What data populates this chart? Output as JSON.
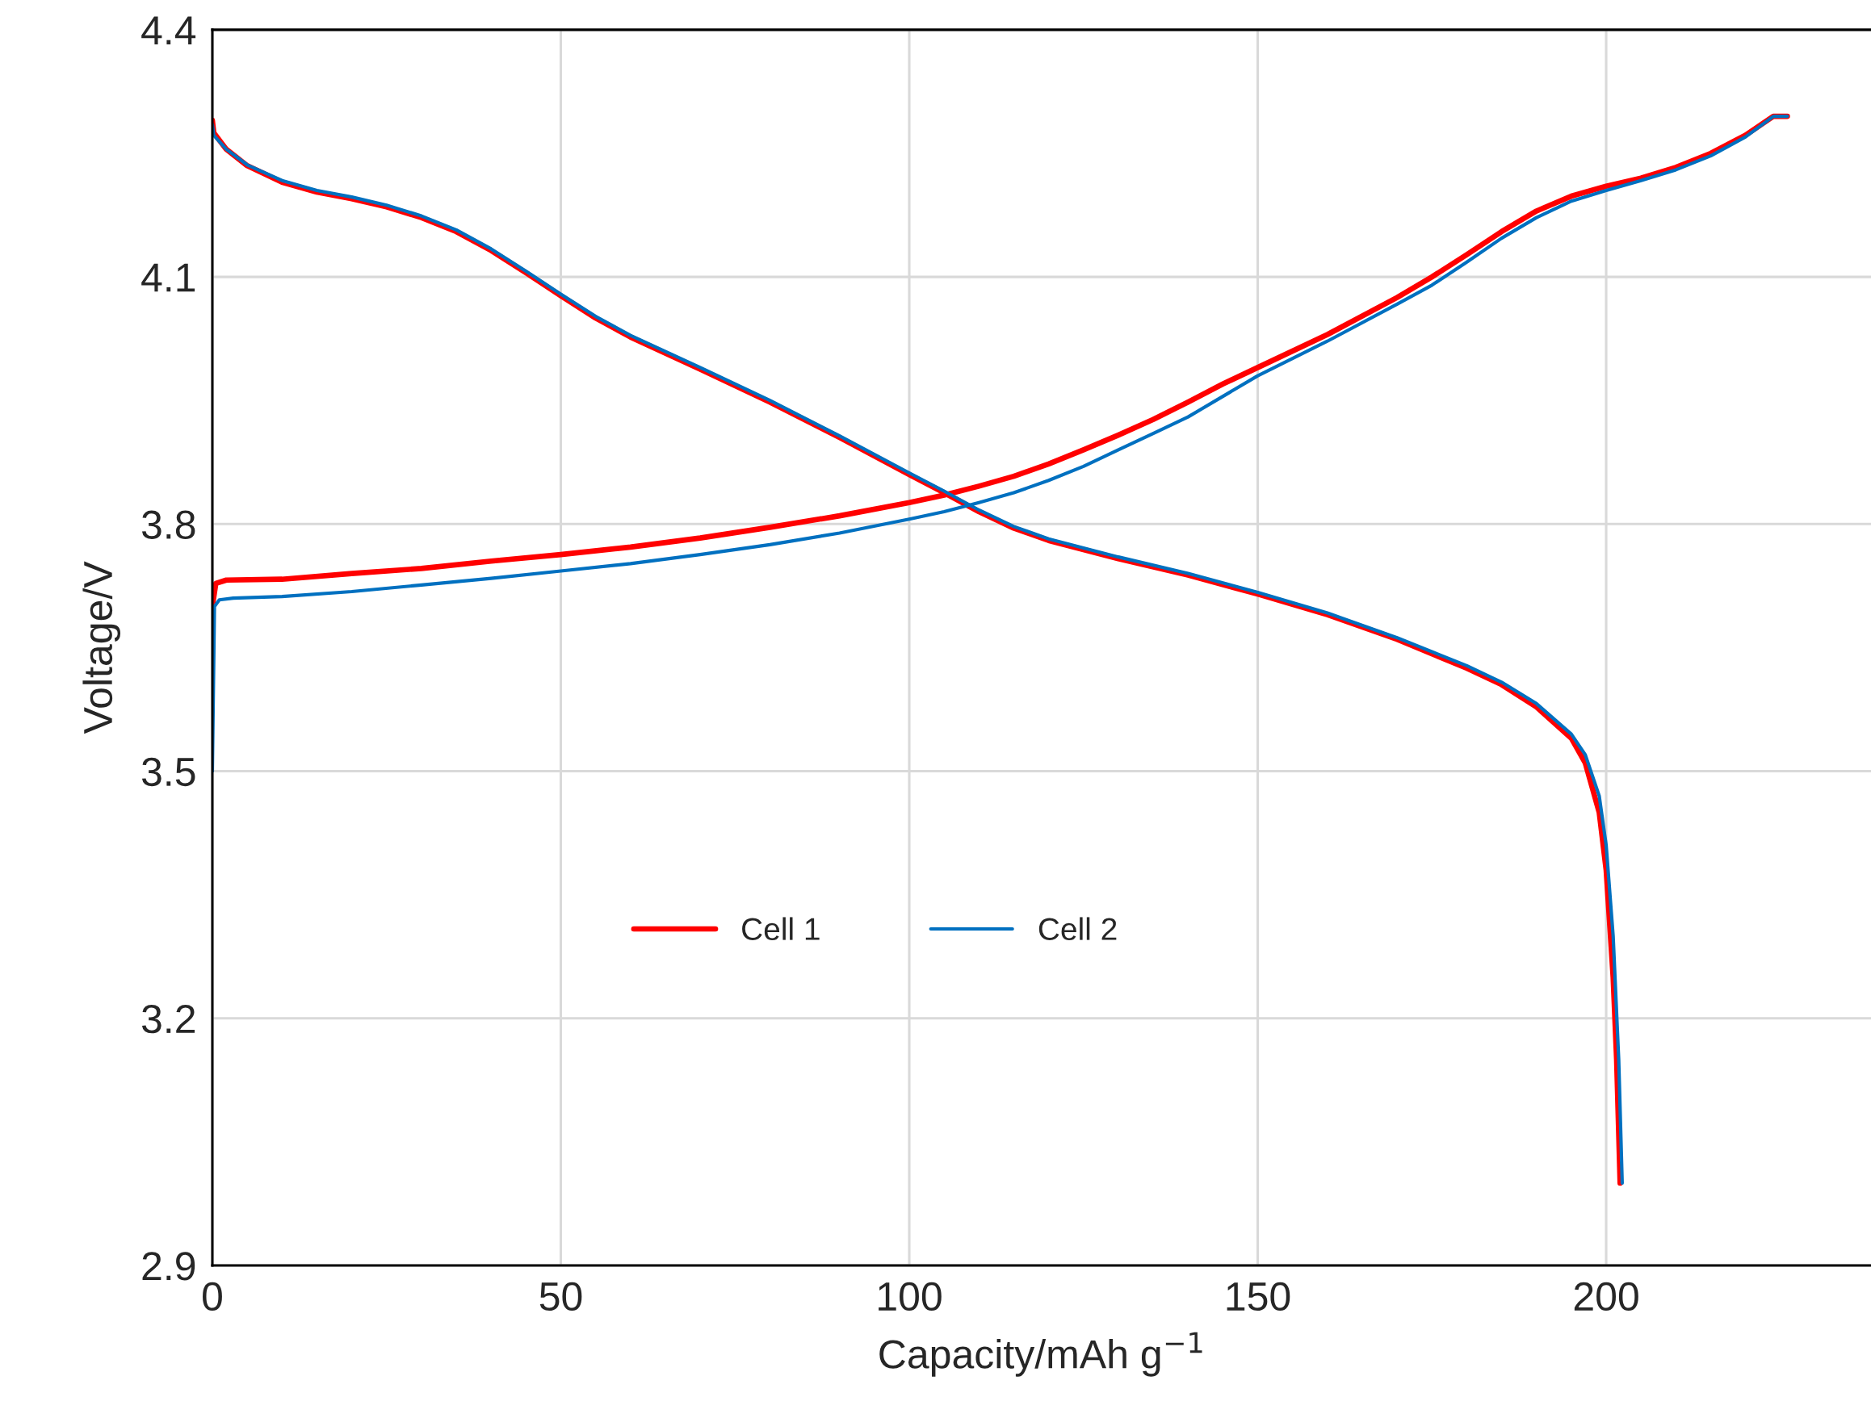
{
  "chart_data": {
    "type": "line",
    "xlabel": "Capacity/mAh g$^{−1}$",
    "ylabel": "Voltage/V",
    "xlim": [
      0,
      238
    ],
    "xticks": [
      0,
      50,
      100,
      150,
      200
    ],
    "ylim": [
      2.9,
      4.4
    ],
    "yticks": [
      2.9,
      3.2,
      3.5,
      3.8,
      4.1,
      4.4
    ],
    "grid": true,
    "legend": "center",
    "marker": "none",
    "line_style": "solid",
    "series": [
      {
        "name": "Cell 1",
        "color": "#ff0000",
        "x": [
          0,
          0.5,
          2,
          10,
          20,
          30,
          40,
          50,
          60,
          70,
          80,
          90,
          100,
          105,
          110,
          115,
          120,
          125,
          130,
          135,
          140,
          145,
          150,
          160,
          170,
          175,
          180,
          185,
          190,
          195,
          200,
          205,
          210,
          215,
          220,
          224,
          226
        ],
        "values": [
          3.7,
          3.728,
          3.732,
          3.733,
          3.74,
          3.746,
          3.755,
          3.763,
          3.772,
          3.783,
          3.796,
          3.81,
          3.826,
          3.835,
          3.846,
          3.858,
          3.873,
          3.89,
          3.908,
          3.927,
          3.948,
          3.97,
          3.99,
          4.03,
          4.075,
          4.1,
          4.127,
          4.155,
          4.18,
          4.198,
          4.21,
          4.22,
          4.233,
          4.25,
          4.272,
          4.295,
          4.295
        ]
      },
      {
        "color": "#ff0000",
        "x": [
          0,
          0.2,
          2,
          5,
          10,
          15,
          20,
          25,
          30,
          35,
          40,
          45,
          50,
          55,
          60,
          70,
          80,
          90,
          100,
          105,
          110,
          115,
          120,
          130,
          140,
          150,
          160,
          170,
          180,
          185,
          190,
          195,
          197,
          199,
          200,
          201,
          201.5,
          202
        ],
        "values": [
          4.29,
          4.275,
          4.255,
          4.235,
          4.215,
          4.203,
          4.195,
          4.185,
          4.172,
          4.155,
          4.132,
          4.105,
          4.077,
          4.05,
          4.027,
          3.988,
          3.948,
          3.905,
          3.86,
          3.838,
          3.815,
          3.795,
          3.78,
          3.758,
          3.738,
          3.715,
          3.69,
          3.66,
          3.625,
          3.605,
          3.578,
          3.54,
          3.51,
          3.45,
          3.38,
          3.25,
          3.15,
          3.0
        ]
      },
      {
        "name": "Cell 2",
        "color": "#0070c0",
        "x": [
          0,
          0.3,
          1,
          3,
          10,
          20,
          30,
          40,
          50,
          60,
          70,
          80,
          90,
          100,
          105,
          110,
          115,
          120,
          125,
          130,
          135,
          140,
          145,
          150,
          160,
          170,
          175,
          180,
          185,
          190,
          195,
          200,
          205,
          210,
          215,
          220,
          224,
          226
        ],
        "values": [
          3.5,
          3.7,
          3.708,
          3.71,
          3.712,
          3.718,
          3.726,
          3.734,
          3.743,
          3.752,
          3.763,
          3.775,
          3.789,
          3.806,
          3.815,
          3.826,
          3.838,
          3.853,
          3.87,
          3.89,
          3.91,
          3.93,
          3.955,
          3.98,
          4.022,
          4.067,
          4.09,
          4.118,
          4.147,
          4.172,
          4.192,
          4.205,
          4.217,
          4.23,
          4.247,
          4.27,
          4.295,
          4.295
        ]
      },
      {
        "color": "#0070c0",
        "x": [
          0,
          0.2,
          2,
          5,
          10,
          15,
          20,
          25,
          30,
          35,
          40,
          45,
          50,
          55,
          60,
          70,
          80,
          90,
          100,
          105,
          110,
          115,
          120,
          130,
          140,
          150,
          160,
          170,
          180,
          185,
          190,
          195,
          197,
          199,
          200,
          201,
          201.8,
          202.3
        ],
        "values": [
          4.285,
          4.272,
          4.255,
          4.236,
          4.217,
          4.205,
          4.197,
          4.187,
          4.174,
          4.157,
          4.134,
          4.107,
          4.079,
          4.052,
          4.029,
          3.99,
          3.95,
          3.907,
          3.862,
          3.84,
          3.817,
          3.797,
          3.782,
          3.76,
          3.74,
          3.717,
          3.692,
          3.662,
          3.628,
          3.608,
          3.582,
          3.545,
          3.52,
          3.47,
          3.41,
          3.3,
          3.15,
          3.0
        ]
      }
    ]
  }
}
